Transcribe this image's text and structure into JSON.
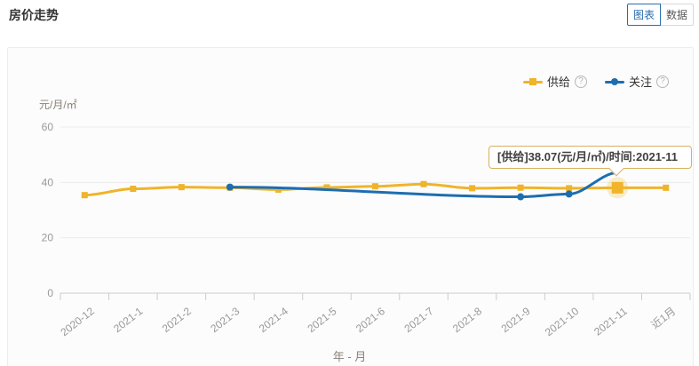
{
  "page": {
    "title": "房价走势"
  },
  "toolbar": {
    "chart_tab": "图表",
    "data_tab": "数据"
  },
  "legend": {
    "items": [
      {
        "label": "供给",
        "color": "#F0B42A",
        "shape": "square",
        "help": "?"
      },
      {
        "label": "关注",
        "color": "#1C6EB0",
        "shape": "circle",
        "help": "?"
      }
    ]
  },
  "tooltip": {
    "text": "[供给]38.07(元/月/㎡)/时间:2021-11"
  },
  "colors": {
    "supply": "#F0B42A",
    "attention": "#1C6EB0",
    "grid": "#ebebeb",
    "axis": "#cccccc",
    "tick_label": "#999999",
    "highlight_halo": "rgba(241,183,42,0.25)"
  },
  "chart_data": {
    "type": "line",
    "title": "房价走势",
    "xlabel": "年 - 月",
    "ylabel": "元/月/㎡",
    "ylim": [
      0,
      60
    ],
    "yticks": [
      0,
      20,
      40,
      60
    ],
    "grid": true,
    "legend_position": "top-right",
    "categories": [
      "2020-12",
      "2021-1",
      "2021-2",
      "2021-3",
      "2021-4",
      "2021-5",
      "2021-6",
      "2021-7",
      "2021-8",
      "2021-9",
      "2021-10",
      "2021-11",
      "近1月"
    ],
    "series": [
      {
        "name": "供给",
        "color": "#F0B42A",
        "symbol": "square",
        "smooth": true,
        "values": [
          35.4,
          37.7,
          38.3,
          38.1,
          37.4,
          38.2,
          38.6,
          39.4,
          37.9,
          38.1,
          37.9,
          38.07,
          38.07
        ]
      },
      {
        "name": "关注",
        "color": "#1C6EB0",
        "symbol": "circle",
        "smooth": true,
        "values": [
          null,
          null,
          null,
          38.3,
          null,
          null,
          null,
          null,
          null,
          34.8,
          35.8,
          43.5,
          null
        ],
        "hide_symbol_at_index": 11
      }
    ],
    "highlight": {
      "series": "供给",
      "category": "2021-11",
      "value": 38.07
    }
  }
}
